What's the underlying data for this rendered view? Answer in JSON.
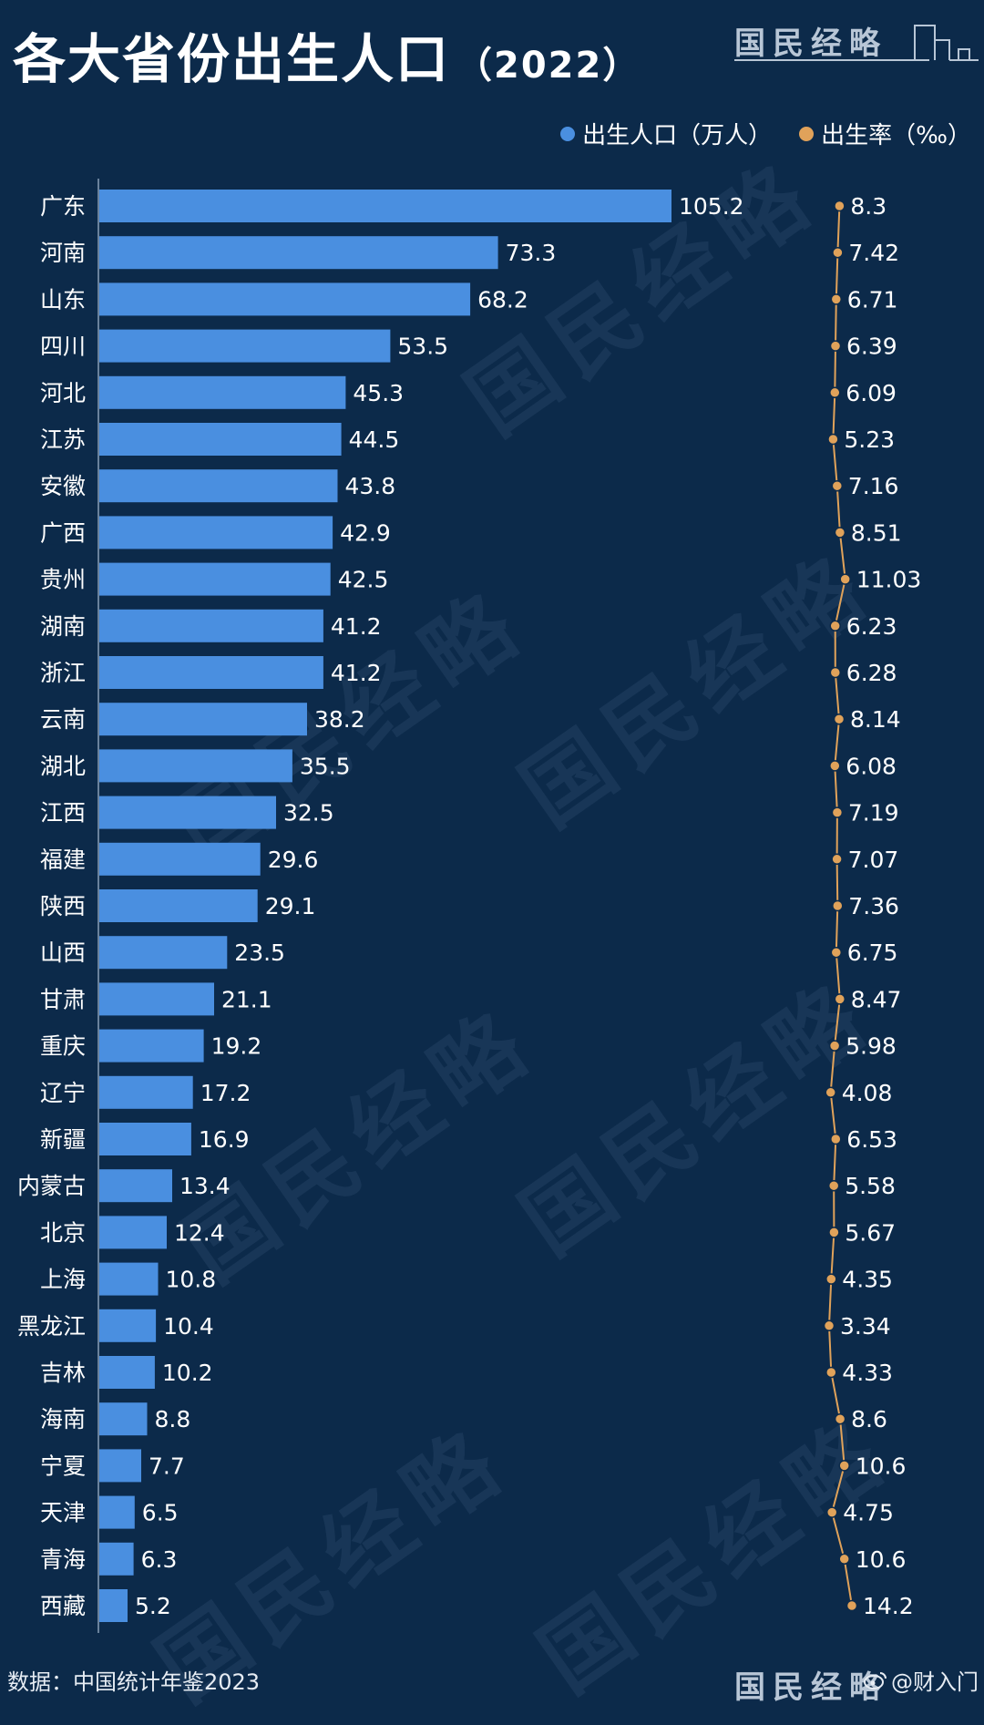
{
  "title": "各大省份出生人口",
  "title_year": "（2022）",
  "brand": "国民经略",
  "source": "数据：中国统计年鉴2023",
  "weibo_handle": "@财入门",
  "legend": {
    "births_label": "出生人口（万人）",
    "rate_label": "出生率（‰）"
  },
  "colors": {
    "bar": "#4a8fe0",
    "line": "#e0a25a",
    "background": "#0c2a4a"
  },
  "chart_data": {
    "type": "bar",
    "categories": [
      "广东",
      "河南",
      "山东",
      "四川",
      "河北",
      "江苏",
      "安徽",
      "广西",
      "贵州",
      "湖南",
      "浙江",
      "云南",
      "湖北",
      "江西",
      "福建",
      "陕西",
      "山西",
      "甘肃",
      "重庆",
      "辽宁",
      "新疆",
      "内蒙古",
      "北京",
      "上海",
      "黑龙江",
      "吉林",
      "海南",
      "宁夏",
      "天津",
      "青海",
      "西藏"
    ],
    "series": [
      {
        "name": "出生人口（万人）",
        "type": "bar",
        "values": [
          105.2,
          73.3,
          68.2,
          53.5,
          45.3,
          44.5,
          43.8,
          42.9,
          42.5,
          41.2,
          41.2,
          38.2,
          35.5,
          32.5,
          29.6,
          29.1,
          23.5,
          21.1,
          19.2,
          17.2,
          16.9,
          13.4,
          12.4,
          10.8,
          10.4,
          10.2,
          8.8,
          7.7,
          6.5,
          6.3,
          5.2
        ]
      },
      {
        "name": "出生率（‰）",
        "type": "line",
        "values": [
          8.3,
          7.42,
          6.71,
          6.39,
          6.09,
          5.23,
          7.16,
          8.51,
          11.03,
          6.23,
          6.28,
          8.14,
          6.08,
          7.19,
          7.07,
          7.36,
          6.75,
          8.47,
          5.98,
          4.08,
          6.53,
          5.58,
          5.67,
          4.35,
          3.34,
          4.33,
          8.6,
          10.6,
          4.75,
          10.6,
          14.2
        ]
      }
    ],
    "orientation": "horizontal",
    "grid": false,
    "legend_position": "top-right"
  }
}
